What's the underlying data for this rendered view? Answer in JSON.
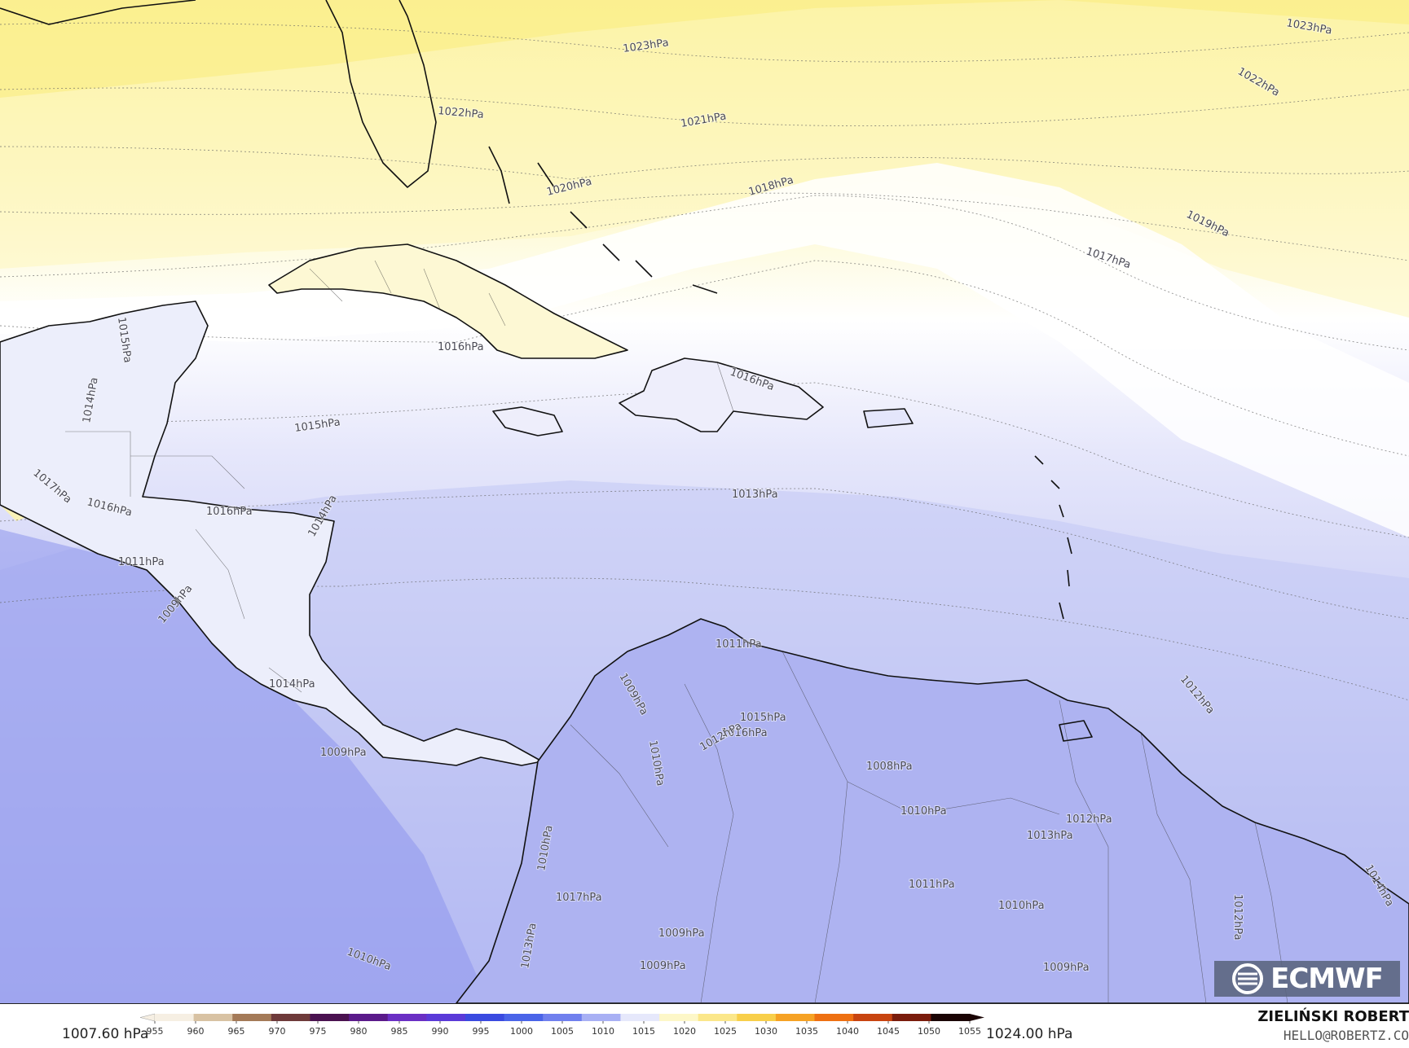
{
  "map": {
    "isobar_labels": [
      {
        "text": "1023hPa"
      },
      {
        "text": "1023hPa"
      },
      {
        "text": "1022hPa"
      },
      {
        "text": "1022hPa"
      },
      {
        "text": "1021hPa"
      },
      {
        "text": "1020hPa"
      },
      {
        "text": "1018hPa"
      },
      {
        "text": "1019hPa"
      },
      {
        "text": "1017hPa"
      },
      {
        "text": "1016hPa"
      },
      {
        "text": "1015hPa"
      },
      {
        "text": "1015hPa"
      },
      {
        "text": "1014hPa"
      },
      {
        "text": "1016hPa"
      },
      {
        "text": "1013hPa"
      },
      {
        "text": "1017hPa"
      },
      {
        "text": "1016hPa"
      },
      {
        "text": "1016hPa"
      },
      {
        "text": "1014hPa"
      },
      {
        "text": "1011hPa"
      },
      {
        "text": "1009hPa"
      },
      {
        "text": "1014hPa"
      },
      {
        "text": "1009hPa"
      },
      {
        "text": "1011hPa"
      },
      {
        "text": "1009hPa"
      },
      {
        "text": "1010hPa"
      },
      {
        "text": "1015hPa"
      },
      {
        "text": "1016hPa"
      },
      {
        "text": "1012hPa"
      },
      {
        "text": "1012hPa"
      },
      {
        "text": "1008hPa"
      },
      {
        "text": "1010hPa"
      },
      {
        "text": "1012hPa"
      },
      {
        "text": "1013hPa"
      },
      {
        "text": "1011hPa"
      },
      {
        "text": "1010hPa"
      },
      {
        "text": "1009hPa"
      },
      {
        "text": "1017hPa"
      },
      {
        "text": "1010hPa"
      },
      {
        "text": "1013hPa"
      },
      {
        "text": "1009hPa"
      },
      {
        "text": "1009hPa"
      },
      {
        "text": "1010hPa"
      },
      {
        "text": "1012hPa"
      },
      {
        "text": "1014hPa"
      }
    ]
  },
  "logo": {
    "text": "ECMWF"
  },
  "colorbar": {
    "min_label": "1007.60 hPa",
    "max_label": "1024.00 hPa",
    "ticks": [
      "955",
      "960",
      "965",
      "970",
      "975",
      "980",
      "985",
      "990",
      "995",
      "1000",
      "1005",
      "1010",
      "1015",
      "1020",
      "1025",
      "1030",
      "1035",
      "1040",
      "1045",
      "1050",
      "1055"
    ],
    "colors": [
      "#f6efe3",
      "#d8c2a3",
      "#a47a58",
      "#6e3a3a",
      "#4a1250",
      "#5a1a8a",
      "#6a2fc4",
      "#5a3ad8",
      "#3a4ae0",
      "#4a64e8",
      "#7080ee",
      "#a8b0f4",
      "#e6e8fb",
      "#fdf7c8",
      "#fbe78a",
      "#f8cf4a",
      "#f6a224",
      "#ee7012",
      "#c84410",
      "#7a1c0c",
      "#1a0404"
    ]
  },
  "credit": {
    "author": "ZIELIŃSKI ROBERT",
    "email": "HELLO@ROBERTZ.CO"
  }
}
